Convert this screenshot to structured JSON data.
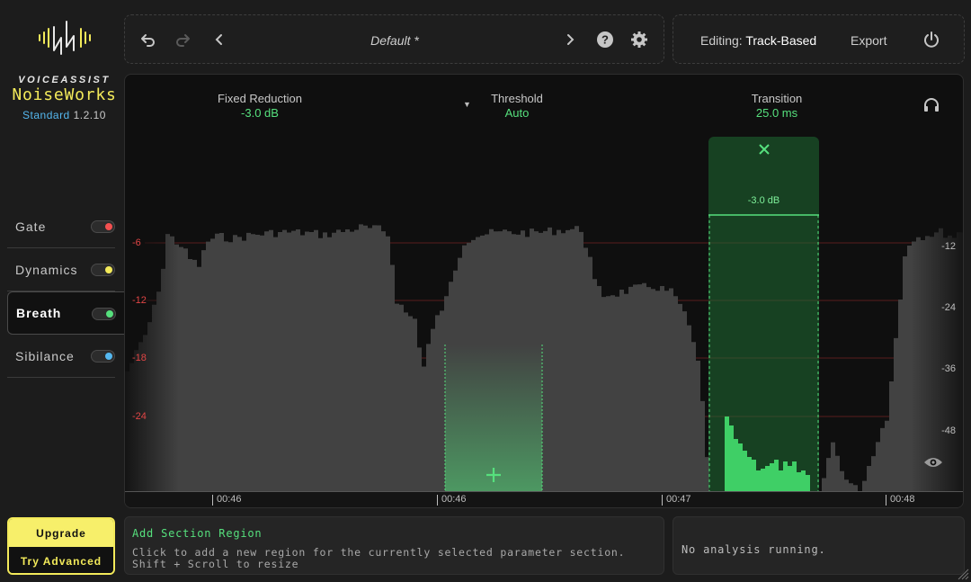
{
  "brand": {
    "company": "VOICEASSIST",
    "product": "NoiseWorks",
    "edition": "Standard",
    "version": "1.2.10"
  },
  "sidebar": {
    "items": [
      {
        "label": "Gate",
        "color": "#f25050",
        "active": false
      },
      {
        "label": "Dynamics",
        "color": "#f3ea5a",
        "active": false
      },
      {
        "label": "Breath",
        "color": "#56e07d",
        "active": true
      },
      {
        "label": "Sibilance",
        "color": "#55b8f0",
        "active": false
      }
    ]
  },
  "upgrade": {
    "label": "Upgrade",
    "advanced_label": "Try Advanced"
  },
  "toolbar": {
    "preset": "Default *",
    "editing_label": "Editing:",
    "editing_value": "Track-Based",
    "export_label": "Export"
  },
  "icons": [
    "undo-icon",
    "redo-icon",
    "chevron-left-icon",
    "chevron-right-icon",
    "help-icon",
    "gear-icon",
    "power-icon",
    "headphones-icon",
    "eye-icon",
    "add-icon",
    "close-icon"
  ],
  "params": {
    "fixed_reduction": {
      "label": "Fixed Reduction",
      "value": "-3.0 dB"
    },
    "threshold": {
      "label": "Threshold",
      "value": "Auto"
    },
    "transition": {
      "label": "Transition",
      "value": "25.0 ms"
    }
  },
  "region": {
    "value": "-3.0 dB"
  },
  "axis": {
    "left": [
      "-6",
      "-12",
      "-18",
      "-24"
    ],
    "right": [
      "-12",
      "-24",
      "-36",
      "-48"
    ],
    "time": [
      "00:46",
      "00:46",
      "00:47",
      "00:48"
    ]
  },
  "hint": {
    "title": "Add Section Region",
    "text": "Click to add a new region for the currently selected parameter section. Shift + Scroll to resize"
  },
  "status": "No analysis running.",
  "colors": {
    "accent_green": "#56e07d",
    "brand_yellow": "#f3ea5a",
    "axis_red": "#e14545"
  }
}
